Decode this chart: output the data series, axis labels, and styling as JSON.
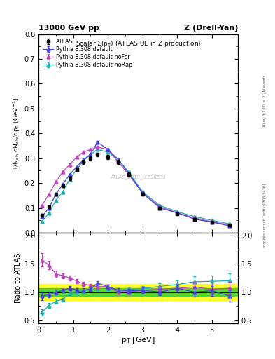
{
  "title_left": "13000 GeV pp",
  "title_right": "Z (Drell-Yan)",
  "plot_title": "Scalar Σ(pₜ) (ATLAS UE in Z production)",
  "xlabel": "pₜ [GeV]",
  "ylabel_main": "1/Nₕ dNₙ/dpₜ [GeV⁻¹]",
  "ylabel_ratio": "Ratio to ATLAS",
  "watermark": "ATLAS_2019_I1736531",
  "rivet_label": "Rivet 3.1.10, ≥ 2.7M events",
  "mcplots_label": "mcplots.cern.ch [arXiv:1306.3436]",
  "atlas_x": [
    0.1,
    0.3,
    0.5,
    0.7,
    0.9,
    1.1,
    1.3,
    1.5,
    1.7,
    2.0,
    2.3,
    2.6,
    3.0,
    3.5,
    4.0,
    4.5,
    5.0,
    5.5
  ],
  "atlas_y": [
    0.07,
    0.105,
    0.155,
    0.19,
    0.22,
    0.255,
    0.285,
    0.3,
    0.315,
    0.305,
    0.285,
    0.235,
    0.155,
    0.1,
    0.075,
    0.055,
    0.042,
    0.03
  ],
  "atlas_yerr": [
    0.005,
    0.005,
    0.006,
    0.006,
    0.007,
    0.007,
    0.008,
    0.008,
    0.008,
    0.008,
    0.008,
    0.008,
    0.006,
    0.005,
    0.004,
    0.004,
    0.003,
    0.003
  ],
  "py_def_x": [
    0.1,
    0.3,
    0.5,
    0.7,
    0.9,
    1.1,
    1.3,
    1.5,
    1.7,
    2.0,
    2.3,
    2.6,
    3.0,
    3.5,
    4.0,
    4.5,
    5.0,
    5.5
  ],
  "py_def_y": [
    0.065,
    0.1,
    0.155,
    0.195,
    0.235,
    0.265,
    0.295,
    0.315,
    0.365,
    0.335,
    0.295,
    0.24,
    0.16,
    0.1,
    0.08,
    0.055,
    0.043,
    0.028
  ],
  "py_def_yerr": [
    0.002,
    0.002,
    0.003,
    0.003,
    0.003,
    0.003,
    0.004,
    0.004,
    0.005,
    0.004,
    0.004,
    0.003,
    0.003,
    0.002,
    0.002,
    0.002,
    0.002,
    0.001
  ],
  "py_noFsr_x": [
    0.1,
    0.3,
    0.5,
    0.7,
    0.9,
    1.1,
    1.3,
    1.5,
    1.7,
    2.0,
    2.3,
    2.6,
    3.0,
    3.5,
    4.0,
    4.5,
    5.0,
    5.5
  ],
  "py_noFsr_y": [
    0.11,
    0.155,
    0.205,
    0.245,
    0.275,
    0.305,
    0.325,
    0.335,
    0.345,
    0.335,
    0.285,
    0.235,
    0.16,
    0.105,
    0.08,
    0.06,
    0.044,
    0.032
  ],
  "py_noFsr_yerr": [
    0.003,
    0.003,
    0.004,
    0.004,
    0.004,
    0.004,
    0.004,
    0.004,
    0.004,
    0.004,
    0.004,
    0.003,
    0.003,
    0.002,
    0.002,
    0.002,
    0.002,
    0.001
  ],
  "py_noRap_x": [
    0.1,
    0.3,
    0.5,
    0.7,
    0.9,
    1.1,
    1.3,
    1.5,
    1.7,
    2.0,
    2.3,
    2.6,
    3.0,
    3.5,
    4.0,
    4.5,
    5.0,
    5.5
  ],
  "py_noRap_y": [
    0.045,
    0.08,
    0.13,
    0.165,
    0.215,
    0.255,
    0.29,
    0.315,
    0.335,
    0.325,
    0.295,
    0.245,
    0.165,
    0.11,
    0.085,
    0.065,
    0.05,
    0.036
  ],
  "py_noRap_yerr": [
    0.002,
    0.002,
    0.003,
    0.003,
    0.003,
    0.003,
    0.003,
    0.003,
    0.003,
    0.003,
    0.003,
    0.003,
    0.003,
    0.002,
    0.002,
    0.002,
    0.002,
    0.001
  ],
  "color_atlas": "#000000",
  "color_py_def": "#4444dd",
  "color_py_noFsr": "#bb44bb",
  "color_py_noRap": "#22aaaa",
  "band_green_lo": 0.93,
  "band_green_hi": 1.07,
  "band_yellow_lo": 0.86,
  "band_yellow_hi": 1.14,
  "main_ylim": [
    0.0,
    0.8
  ],
  "ratio_ylim": [
    0.45,
    2.05
  ],
  "xlim": [
    0.0,
    5.75
  ],
  "main_yticks": [
    0.0,
    0.1,
    0.2,
    0.3,
    0.4,
    0.5,
    0.6,
    0.7,
    0.8
  ],
  "ratio_yticks": [
    0.5,
    1.0,
    1.5,
    2.0
  ]
}
